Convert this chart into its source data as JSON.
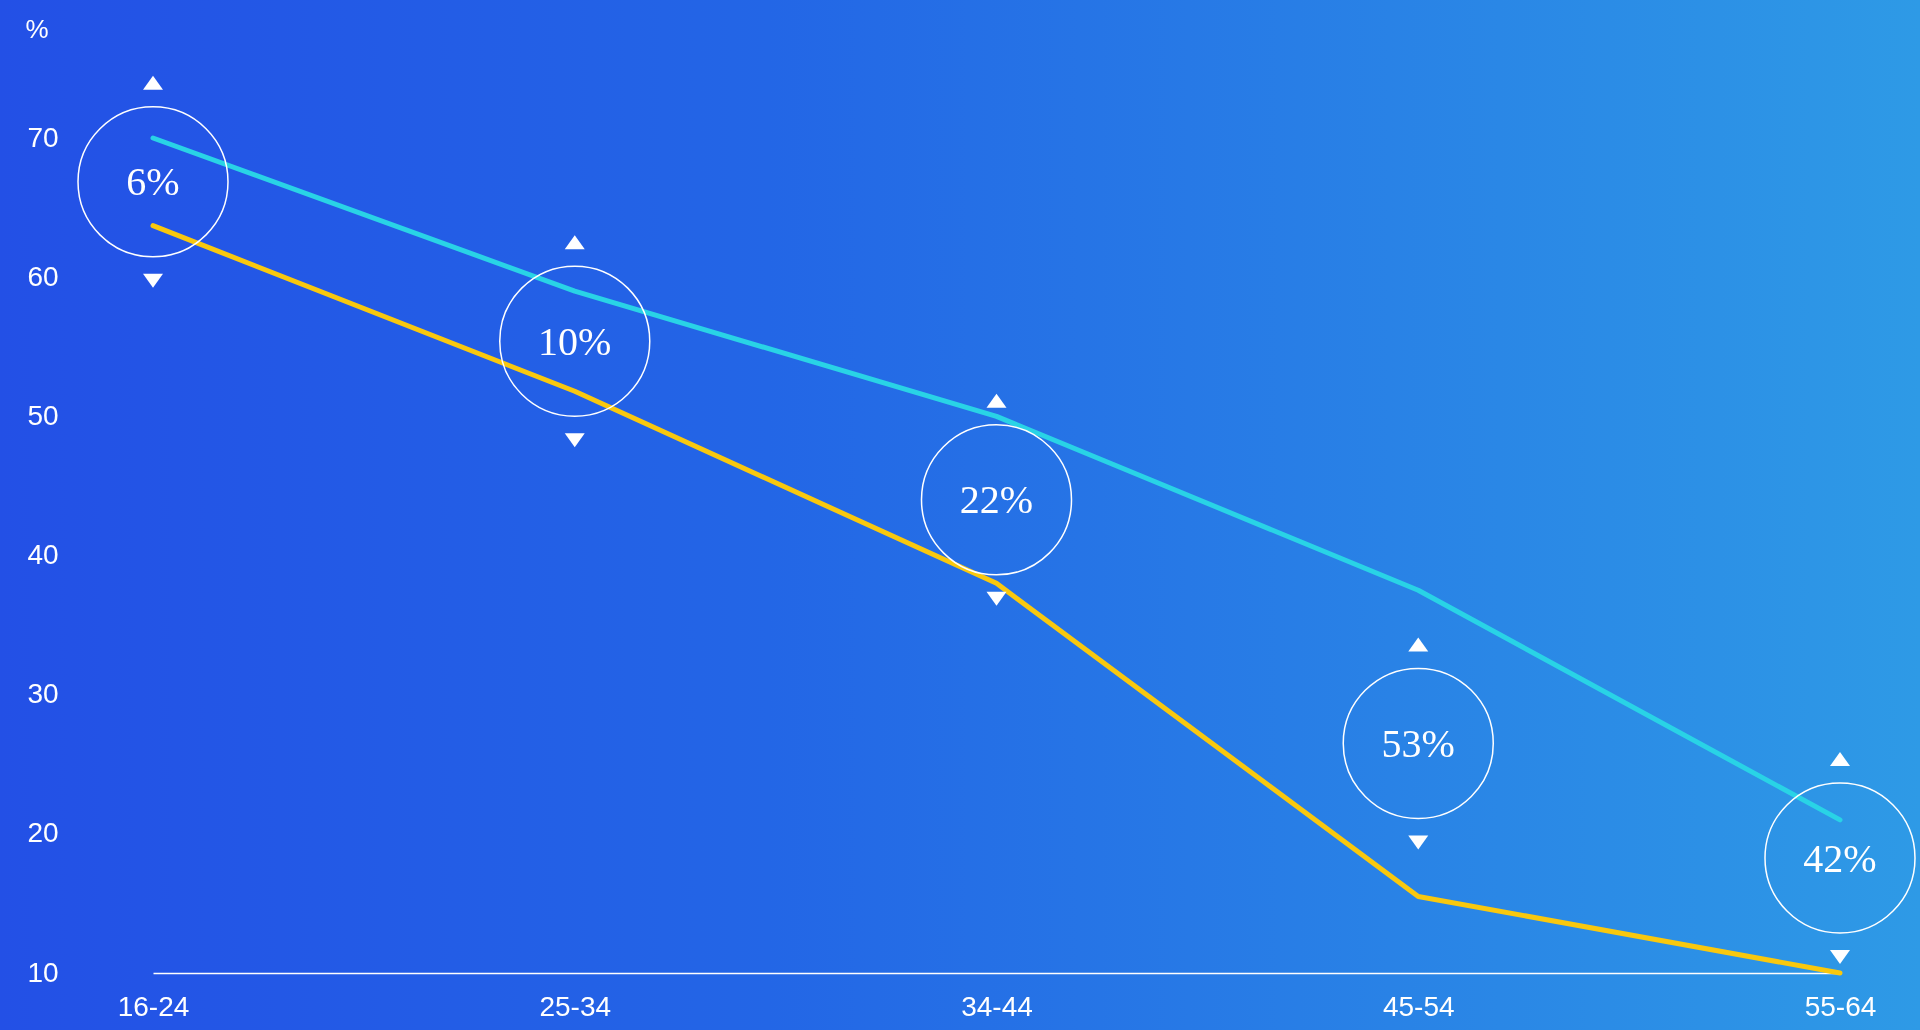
{
  "chart_data": {
    "type": "line",
    "ylabel": "%",
    "categories": [
      "16-24",
      "25-34",
      "34-44",
      "45-54",
      "55-64"
    ],
    "series": [
      {
        "color": "#29d3e6",
        "values": [
          70,
          59,
          50,
          37.5,
          21
        ]
      },
      {
        "color": "#f9c80e",
        "values": [
          63.7,
          51.8,
          38,
          15.5,
          10
        ]
      }
    ],
    "ylim": [
      10,
      70
    ],
    "yticks": [
      10,
      20,
      30,
      40,
      50,
      60,
      70
    ],
    "grid": false,
    "annotations": [
      "6%",
      "10%",
      "22%",
      "53%",
      "42%"
    ]
  }
}
